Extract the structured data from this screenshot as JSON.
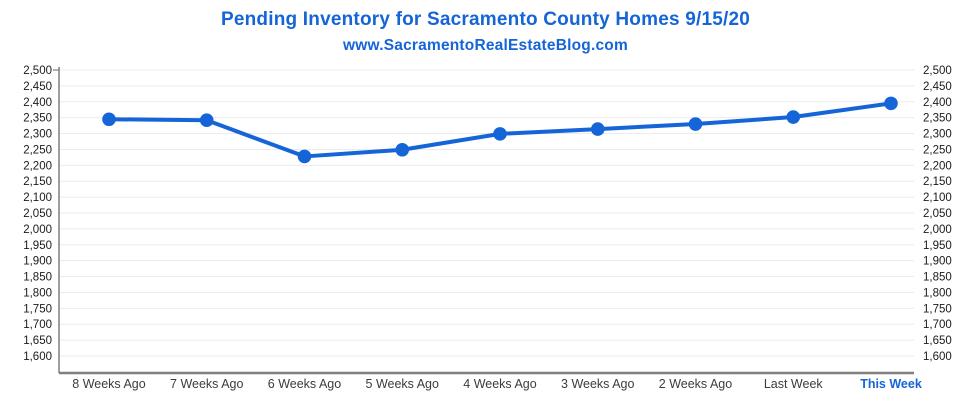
{
  "header": {
    "title": "Pending Inventory for Sacramento County Homes 9/15/20",
    "subtitle": "www.SacramentoRealEstateBlog.com"
  },
  "colors": {
    "accent_blue": "#1565d8",
    "line_blue": "#1565d8",
    "gridline": "#ebebeb",
    "axis_line": "#7f7f7f",
    "y_tick_label": "#1a1a1a",
    "x_tick_label": "#3c3c3c",
    "background": "#ffffff"
  },
  "chart_data": {
    "type": "line",
    "title": "Pending Inventory for Sacramento County Homes 9/15/20",
    "subtitle": "www.SacramentoRealEstateBlog.com",
    "categories": [
      "8 Weeks Ago",
      "7 Weeks Ago",
      "6 Weeks Ago",
      "5 Weeks Ago",
      "4 Weeks Ago",
      "3 Weeks Ago",
      "2 Weeks Ago",
      "Last Week",
      "This Week"
    ],
    "values": [
      2345,
      2342,
      2228,
      2249,
      2299,
      2314,
      2330,
      2352,
      2395
    ],
    "xlabel": "",
    "ylabel": "",
    "ylim": [
      1600,
      2500
    ],
    "y_tick_step": 50,
    "y_axis_sides": [
      "left",
      "right"
    ],
    "grid": true,
    "legend": "none",
    "last_category_highlighted": true
  }
}
